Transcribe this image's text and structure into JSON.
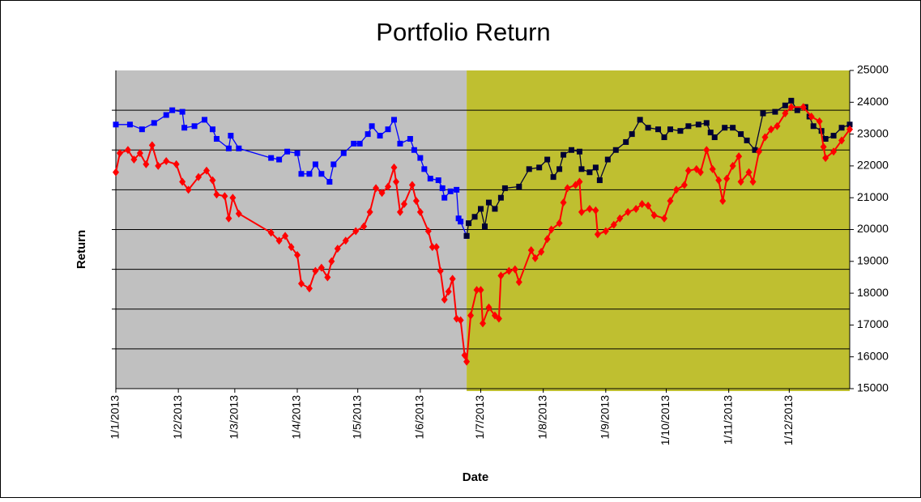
{
  "chart_data": {
    "type": "line",
    "title": "Portfolio Return",
    "x_label": "Date",
    "y_label": "Return",
    "xlim": [
      "1/1/2013",
      "31/12/2013"
    ],
    "xticks": [
      "1/1/2013",
      "1/2/2013",
      "1/3/2013",
      "1/4/2013",
      "1/5/2013",
      "1/6/2013",
      "1/7/2013",
      "1/8/2013",
      "1/9/2013",
      "1/10/2013",
      "1/11/2013",
      "1/12/2013"
    ],
    "ylim": [
      15000,
      25000
    ],
    "ygrid": [
      16250,
      17500,
      18750,
      20000,
      21250,
      22500,
      23750
    ],
    "y2lim": [
      15000,
      25000
    ],
    "y2ticks": [
      15000,
      16000,
      17000,
      18000,
      19000,
      20000,
      21000,
      22000,
      23000,
      24000,
      25000
    ],
    "bands": [
      {
        "start": "1/1/2013",
        "end": "24/6/2013",
        "color": "#c0c0c0"
      },
      {
        "start": "24/6/2013",
        "end": "31/12/2013",
        "color": "#bfbf30"
      }
    ],
    "series": [
      {
        "color": "#0000ff",
        "marker": "square",
        "axis": "y2",
        "x": [
          "1/1/2013",
          "8/1/2013",
          "14/1/2013",
          "20/1/2013",
          "26/1/2013",
          "29/1/2013",
          "3/2/2013",
          "4/2/2013",
          "9/2/2013",
          "14/2/2013",
          "18/2/2013",
          "20/2/2013",
          "26/2/2013",
          "27/2/2013",
          "3/3/2013",
          "19/3/2013",
          "23/3/2013",
          "27/3/2013",
          "1/4/2013",
          "3/4/2013",
          "7/4/2013",
          "10/4/2013",
          "13/4/2013",
          "17/4/2013",
          "19/4/2013",
          "24/4/2013",
          "29/4/2013",
          "2/5/2013",
          "6/5/2013",
          "8/5/2013",
          "12/5/2013",
          "16/5/2013",
          "19/5/2013",
          "22/5/2013",
          "27/5/2013",
          "29/5/2013",
          "1/6/2013",
          "3/6/2013",
          "6/6/2013",
          "10/6/2013",
          "12/6/2013",
          "13/6/2013",
          "16/6/2013",
          "19/6/2013",
          "20/6/2013",
          "21/6/2013",
          "24/6/2013"
        ],
        "values": [
          23300,
          23300,
          23150,
          23350,
          23600,
          23750,
          23700,
          23200,
          23250,
          23450,
          23150,
          22850,
          22550,
          22950,
          22550,
          22250,
          22200,
          22450,
          22400,
          21750,
          21750,
          22050,
          21750,
          21500,
          22050,
          22400,
          22700,
          22700,
          23000,
          23250,
          22950,
          23150,
          23450,
          22700,
          22850,
          22500,
          22250,
          21900,
          21600,
          21550,
          21300,
          21000,
          21200,
          21250,
          20350,
          20250,
          19800
        ]
      },
      {
        "color": "#000033",
        "marker": "square",
        "axis": "y2",
        "x": [
          "24/6/2013",
          "25/6/2013",
          "28/6/2013",
          "1/7/2013",
          "3/7/2013",
          "5/7/2013",
          "8/7/2013",
          "11/7/2013",
          "13/7/2013",
          "20/7/2013",
          "25/7/2013",
          "30/7/2013",
          "3/8/2013",
          "6/8/2013",
          "9/8/2013",
          "11/8/2013",
          "15/8/2013",
          "19/8/2013",
          "20/8/2013",
          "24/8/2013",
          "27/8/2013",
          "29/8/2013",
          "2/9/2013",
          "6/9/2013",
          "11/9/2013",
          "14/9/2013",
          "18/9/2013",
          "22/9/2013",
          "27/9/2013",
          "30/9/2013",
          "3/10/2013",
          "8/10/2013",
          "12/10/2013",
          "17/10/2013",
          "21/10/2013",
          "23/10/2013",
          "25/10/2013",
          "30/10/2013",
          "3/11/2013",
          "7/11/2013",
          "10/11/2013",
          "14/11/2013",
          "18/11/2013",
          "24/11/2013",
          "29/11/2013",
          "2/12/2013",
          "5/12/2013",
          "9/12/2013",
          "11/12/2013",
          "13/12/2013",
          "17/12/2013",
          "19/12/2013",
          "23/12/2013",
          "27/12/2013",
          "31/12/2013"
        ],
        "values": [
          19800,
          20200,
          20400,
          20650,
          20100,
          20850,
          20650,
          21000,
          21300,
          21350,
          21900,
          21950,
          22200,
          21650,
          21900,
          22350,
          22500,
          22450,
          21900,
          21800,
          21950,
          21550,
          22200,
          22500,
          22750,
          23000,
          23450,
          23200,
          23150,
          22900,
          23150,
          23100,
          23250,
          23300,
          23350,
          23050,
          22900,
          23200,
          23200,
          23000,
          22800,
          22500,
          23650,
          23700,
          23900,
          24050,
          23750,
          23850,
          23550,
          23250,
          23100,
          22850,
          22950,
          23200,
          23300
        ]
      },
      {
        "color": "#ff0000",
        "marker": "diamond",
        "axis": "y2",
        "x": [
          "1/1/2013",
          "3/1/2013",
          "7/1/2013",
          "10/1/2013",
          "13/1/2013",
          "16/1/2013",
          "19/1/2013",
          "22/1/2013",
          "26/1/2013",
          "31/1/2013",
          "3/2/2013",
          "6/2/2013",
          "11/2/2013",
          "15/2/2013",
          "18/2/2013",
          "20/2/2013",
          "24/2/2013",
          "26/2/2013",
          "28/2/2013",
          "3/3/2013",
          "19/3/2013",
          "23/3/2013",
          "26/3/2013",
          "29/3/2013",
          "1/4/2013",
          "3/4/2013",
          "7/4/2013",
          "10/4/2013",
          "13/4/2013",
          "16/4/2013",
          "18/4/2013",
          "21/4/2013",
          "25/4/2013",
          "30/4/2013",
          "4/5/2013",
          "7/5/2013",
          "10/5/2013",
          "13/5/2013",
          "16/5/2013",
          "19/5/2013",
          "20/5/2013",
          "22/5/2013",
          "24/5/2013",
          "28/5/2013",
          "30/5/2013",
          "1/6/2013",
          "5/6/2013",
          "7/6/2013",
          "9/6/2013",
          "11/6/2013",
          "13/6/2013",
          "15/6/2013",
          "17/6/2013",
          "19/6/2013",
          "21/6/2013",
          "23/6/2013",
          "24/6/2013",
          "26/6/2013",
          "29/6/2013",
          "1/7/2013",
          "2/7/2013",
          "5/7/2013",
          "8/7/2013",
          "10/7/2013",
          "11/7/2013",
          "15/7/2013",
          "18/7/2013",
          "20/7/2013",
          "26/7/2013",
          "28/7/2013",
          "31/7/2013",
          "3/8/2013",
          "5/8/2013",
          "9/8/2013",
          "11/8/2013",
          "13/8/2013",
          "17/8/2013",
          "19/8/2013",
          "20/8/2013",
          "24/8/2013",
          "27/8/2013",
          "28/8/2013",
          "1/9/2013",
          "5/9/2013",
          "8/9/2013",
          "12/9/2013",
          "16/9/2013",
          "19/9/2013",
          "22/9/2013",
          "25/9/2013",
          "30/9/2013",
          "3/10/2013",
          "6/10/2013",
          "10/10/2013",
          "12/10/2013",
          "16/10/2013",
          "18/10/2013",
          "21/10/2013",
          "24/10/2013",
          "27/10/2013",
          "29/10/2013",
          "31/10/2013",
          "3/11/2013",
          "6/11/2013",
          "7/11/2013",
          "11/11/2013",
          "13/11/2013",
          "16/11/2013",
          "19/11/2013",
          "22/11/2013",
          "25/11/2013",
          "29/11/2013",
          "2/12/2013",
          "8/12/2013",
          "12/12/2013",
          "16/12/2013",
          "18/12/2013",
          "19/12/2013",
          "23/12/2013",
          "27/12/2013",
          "31/12/2013"
        ],
        "values": [
          21800,
          22400,
          22500,
          22200,
          22400,
          22050,
          22650,
          22000,
          22150,
          22050,
          21500,
          21250,
          21650,
          21850,
          21550,
          21100,
          21050,
          20350,
          21000,
          20500,
          19900,
          19650,
          19800,
          19450,
          19200,
          18300,
          18150,
          18700,
          18800,
          18500,
          19000,
          19400,
          19650,
          19950,
          20100,
          20550,
          21300,
          21150,
          21350,
          21950,
          21500,
          20550,
          20800,
          21400,
          20900,
          20550,
          19950,
          19450,
          19450,
          18700,
          17800,
          18050,
          18450,
          17200,
          17150,
          16050,
          15850,
          17300,
          18100,
          18100,
          17050,
          17550,
          17300,
          17200,
          18550,
          18700,
          18750,
          18350,
          19350,
          19100,
          19300,
          19700,
          20000,
          20200,
          20850,
          21300,
          21400,
          21500,
          20550,
          20650,
          20600,
          19850,
          19950,
          20150,
          20350,
          20550,
          20650,
          20800,
          20750,
          20450,
          20350,
          20900,
          21250,
          21400,
          21850,
          21900,
          21800,
          22500,
          21900,
          21550,
          20900,
          21600,
          22000,
          22300,
          21500,
          21800,
          21500,
          22450,
          22900,
          23150,
          23250,
          23650,
          23850,
          23850,
          23550,
          23400,
          22600,
          22250,
          22450,
          22800,
          23150
        ]
      }
    ]
  }
}
